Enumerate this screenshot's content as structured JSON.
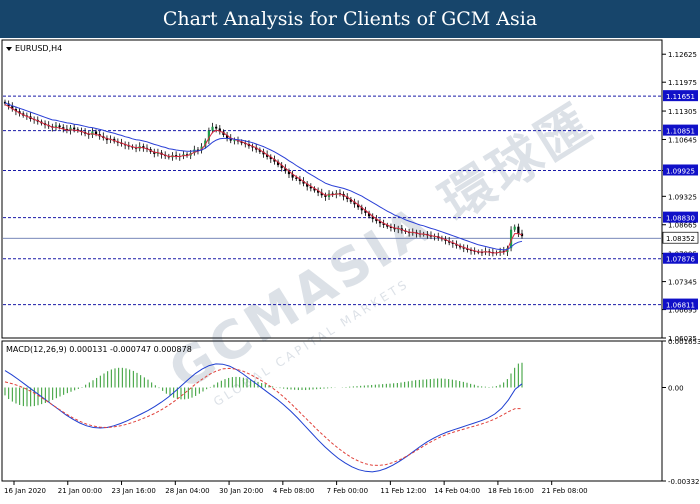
{
  "banner": {
    "title": "Chart Analysis for Clients of GCM Asia"
  },
  "watermark": {
    "text": "GCMASIA 環球匯",
    "subtext": "GLOBAL CAPITAL MARKETS"
  },
  "chart_data": [
    {
      "type": "line",
      "subtype": "candlestick",
      "symbol_label": "EURUSD,H4",
      "ylim": [
        1.06035,
        1.12955
      ],
      "y_ticks": [
        "1.12625",
        "1.11975",
        "1.11305",
        "1.10645",
        "1.09925",
        "1.09325",
        "1.08665",
        "1.07995",
        "1.07345",
        "1.06695",
        "1.06035"
      ],
      "price_now": 1.08352,
      "price_now_label": "1.08352",
      "levels": [
        {
          "value": 1.11651,
          "label": "1.11651"
        },
        {
          "value": 1.10851,
          "label": "1.10851"
        },
        {
          "value": 1.09925,
          "label": "1.09925"
        },
        {
          "value": 1.0883,
          "label": "1.08830"
        },
        {
          "value": 1.07876,
          "label": "1.07876"
        },
        {
          "value": 1.06811,
          "label": "1.06811"
        }
      ],
      "x_labels": [
        "16 Jan 2020",
        "21 Jan 00:00",
        "23 Jan 16:00",
        "28 Jan 04:00",
        "30 Jan 20:00",
        "4 Feb 08:00",
        "7 Feb 00:00",
        "11 Feb 12:00",
        "14 Feb 04:00",
        "18 Feb 16:00",
        "21 Feb 08:00"
      ],
      "closes": [
        1.1148,
        1.1142,
        1.1135,
        1.113,
        1.1125,
        1.112,
        1.1118,
        1.1112,
        1.111,
        1.1106,
        1.1102,
        1.1098,
        1.1095,
        1.1092,
        1.1097,
        1.1093,
        1.1089,
        1.1085,
        1.1092,
        1.1088,
        1.1085,
        1.1082,
        1.1078,
        1.1075,
        1.1083,
        1.1077,
        1.1072,
        1.1068,
        1.1063,
        1.1066,
        1.106,
        1.1057,
        1.1054,
        1.1051,
        1.1048,
        1.1046,
        1.1043,
        1.1049,
        1.1045,
        1.1042,
        1.1036,
        1.1031,
        1.1034,
        1.1029,
        1.1026,
        1.1023,
        1.1028,
        1.1024,
        1.1026,
        1.103,
        1.1027,
        1.1033,
        1.1041,
        1.1039,
        1.1048,
        1.1062,
        1.1085,
        1.1094,
        1.109,
        1.1083,
        1.1075,
        1.1068,
        1.1062,
        1.1063,
        1.106,
        1.1056,
        1.1054,
        1.1049,
        1.1046,
        1.1041,
        1.1036,
        1.103,
        1.1024,
        1.1019,
        1.1013,
        1.1005,
        1.0998,
        1.0991,
        1.0984,
        1.0976,
        1.0973,
        1.0968,
        1.0962,
        1.0955,
        1.0951,
        1.0946,
        1.0941,
        1.0935,
        1.0931,
        1.0939,
        1.0936,
        1.094,
        1.0938,
        1.0932,
        1.0926,
        1.092,
        1.0914,
        1.0907,
        1.09,
        1.0894,
        1.0886,
        1.088,
        1.0875,
        1.087,
        1.0866,
        1.0862,
        1.0859,
        1.0856,
        1.0858,
        1.0853,
        1.085,
        1.0847,
        1.0849,
        1.0846,
        1.0844,
        1.0845,
        1.0842,
        1.0839,
        1.084,
        1.0836,
        1.0833,
        1.0829,
        1.0825,
        1.0822,
        1.0818,
        1.0814,
        1.0811,
        1.0808,
        1.0806,
        1.0804,
        1.0803,
        1.0802,
        1.0805,
        1.0803,
        1.08,
        1.0802,
        1.0806,
        1.0803,
        1.0812,
        1.0855,
        1.0862,
        1.0846,
        1.084
      ],
      "series": [
        {
          "name": "",
          "color": "#d7263d",
          "values": [
            1.1146,
            1.1141,
            1.1136,
            1.1131,
            1.1126,
            1.1122,
            1.1118,
            1.1115,
            1.1111,
            1.1108,
            1.1104,
            1.11,
            1.1097,
            1.1093,
            1.1093,
            1.1091,
            1.1089,
            1.1086,
            1.1087,
            1.1086,
            1.1085,
            1.1083,
            1.108,
            1.1077,
            1.1078,
            1.1076,
            1.1074,
            1.107,
            1.1066,
            1.1065,
            1.1062,
            1.1059,
            1.1056,
            1.1053,
            1.105,
            1.1048,
            1.1045,
            1.1046,
            1.1045,
            1.1043,
            1.1039,
            1.1035,
            1.1034,
            1.1031,
            1.1028,
            1.1025,
            1.1026,
            1.1025,
            1.1025,
            1.1027,
            1.1027,
            1.103,
            1.1035,
            1.1037,
            1.1042,
            1.1052,
            1.1068,
            1.1081,
            1.1086,
            1.1084,
            1.108,
            1.1074,
            1.1068,
            1.1065,
            1.1062,
            1.1059,
            1.1056,
            1.1052,
            1.1049,
            1.1045,
            1.104,
            1.1035,
            1.1029,
            1.1024,
            1.1018,
            1.1012,
            1.1005,
            1.0998,
            1.0991,
            1.0984,
            1.0978,
            1.0973,
            1.0967,
            1.0961,
            1.0956,
            1.0951,
            1.0946,
            1.094,
            1.0935,
            1.0936,
            1.0936,
            1.0938,
            1.0938,
            1.0935,
            1.0931,
            1.0925,
            1.0919,
            1.0913,
            1.0906,
            1.09,
            1.0893,
            1.0886,
            1.088,
            1.0875,
            1.087,
            1.0866,
            1.0862,
            1.0859,
            1.0858,
            1.0855,
            1.0852,
            1.0849,
            1.0849,
            1.0847,
            1.0845,
            1.0845,
            1.0843,
            1.0841,
            1.084,
            1.0838,
            1.0835,
            1.0832,
            1.0828,
            1.0825,
            1.0821,
            1.0817,
            1.0814,
            1.0811,
            1.0808,
            1.0806,
            1.0804,
            1.0803,
            1.0804,
            1.0803,
            1.0801,
            1.0801,
            1.0803,
            1.0803,
            1.0808,
            1.083,
            1.0846,
            1.0846,
            1.0843
          ]
        },
        {
          "name": "",
          "color": "#2a3fd6",
          "values": [
            1.115,
            1.1146,
            1.1143,
            1.114,
            1.1137,
            1.1134,
            1.1131,
            1.1128,
            1.1125,
            1.1122,
            1.1119,
            1.1116,
            1.1113,
            1.111,
            1.1109,
            1.1107,
            1.1105,
            1.1103,
            1.1102,
            1.11,
            1.1099,
            1.1097,
            1.1095,
            1.1093,
            1.1092,
            1.109,
            1.1088,
            1.1086,
            1.1083,
            1.1081,
            1.1079,
            1.1076,
            1.1074,
            1.1071,
            1.1069,
            1.1066,
            1.1064,
            1.1063,
            1.1061,
            1.1059,
            1.1056,
            1.1053,
            1.1051,
            1.1048,
            1.1046,
            1.1043,
            1.1042,
            1.104,
            1.1039,
            1.1038,
            1.1037,
            1.1037,
            1.1038,
            1.1038,
            1.104,
            1.1044,
            1.1051,
            1.1058,
            1.1063,
            1.1066,
            1.1067,
            1.1067,
            1.1066,
            1.1065,
            1.1064,
            1.1063,
            1.1061,
            1.1059,
            1.1057,
            1.1054,
            1.1051,
            1.1048,
            1.1044,
            1.104,
            1.1036,
            1.1031,
            1.1026,
            1.1021,
            1.1015,
            1.101,
            1.1004,
            1.0999,
            1.0994,
            1.0988,
            1.0983,
            1.0978,
            1.0973,
            1.0968,
            1.0963,
            1.096,
            1.0957,
            1.0955,
            1.0953,
            1.0951,
            1.0948,
            1.0945,
            1.0941,
            1.0937,
            1.0933,
            1.0928,
            1.0923,
            1.0918,
            1.0913,
            1.0908,
            1.0903,
            1.0898,
            1.0894,
            1.0889,
            1.0886,
            1.0882,
            1.0878,
            1.0875,
            1.0872,
            1.0869,
            1.0866,
            1.0864,
            1.0861,
            1.0858,
            1.0856,
            1.0853,
            1.085,
            1.0847,
            1.0844,
            1.0841,
            1.0838,
            1.0835,
            1.0832,
            1.0829,
            1.0826,
            1.0823,
            1.082,
            1.0818,
            1.0816,
            1.0814,
            1.0812,
            1.081,
            1.0809,
            1.0808,
            1.0809,
            1.0815,
            1.0822,
            1.0826,
            1.0828
          ]
        }
      ]
    },
    {
      "type": "bar",
      "label": "MACD(12,26,9) 0.000131 -0.000747 0.000878",
      "ylim": [
        -0.003323,
        0.001653
      ],
      "y_ticks": [
        "0.001653",
        "0.00",
        "-0.003323"
      ],
      "histogram": [
        -0.00028,
        -0.00041,
        -0.0005,
        -0.00057,
        -0.00062,
        -0.00066,
        -0.00067,
        -0.00067,
        -0.00066,
        -0.00063,
        -0.00059,
        -0.00055,
        -0.0005,
        -0.00044,
        -0.00038,
        -0.00032,
        -0.00026,
        -0.0002,
        -0.00015,
        -0.0001,
        -5e-05,
        2e-05,
        0.0001,
        0.00018,
        0.00026,
        0.00034,
        0.00042,
        0.0005,
        0.00058,
        0.00064,
        0.00068,
        0.0007,
        0.0007,
        0.00068,
        0.00064,
        0.00059,
        0.00052,
        0.00044,
        0.00036,
        0.00028,
        0.00018,
        8e-05,
        -2e-05,
        -0.00012,
        -0.00022,
        -0.0003,
        -0.00036,
        -0.0004,
        -0.00042,
        -0.00042,
        -0.0004,
        -0.00036,
        -0.0003,
        -0.00022,
        -0.00014,
        -6e-05,
        2e-05,
        0.0001,
        0.00018,
        0.00024,
        0.0003,
        0.00034,
        0.00037,
        0.00038,
        0.00037,
        0.00035,
        0.00032,
        0.00028,
        0.00024,
        0.0002,
        0.00016,
        0.00012,
        8e-05,
        4e-05,
        1e-05,
        -2e-05,
        -4e-05,
        -6e-05,
        -7e-05,
        -8e-05,
        -9e-05,
        -9e-05,
        -9e-05,
        -8e-05,
        -7e-05,
        -6e-05,
        -5e-05,
        -4e-05,
        -3e-05,
        -2e-05,
        -1e-05,
        0.0,
        1e-05,
        2e-05,
        3e-05,
        4e-05,
        5e-05,
        6e-05,
        7e-05,
        8e-05,
        9e-05,
        0.0001,
        0.00011,
        0.00012,
        0.00013,
        0.00014,
        0.00015,
        0.00016,
        0.00018,
        0.0002,
        0.00022,
        0.00024,
        0.00026,
        0.00027,
        0.00028,
        0.00029,
        0.0003,
        0.00031,
        0.00032,
        0.00032,
        0.00031,
        0.0003,
        0.00028,
        0.00026,
        0.00023,
        0.0002,
        0.00017,
        0.00013,
        0.0001,
        6e-05,
        4e-05,
        3e-05,
        2e-05,
        3e-05,
        5e-05,
        0.0001,
        0.00018,
        0.0003,
        0.0005,
        0.0007,
        0.00085,
        0.00088
      ],
      "series": [
        {
          "name": "",
          "color": "#1e3fd1",
          "values": [
            0.0006,
            0.00045,
            0.00028,
            0.0001,
            -8e-05,
            -0.00026,
            -0.00044,
            -0.00062,
            -0.0008,
            -0.00098,
            -0.00113,
            -0.00126,
            -0.00136,
            -0.00142,
            -0.00144,
            -0.00142,
            -0.00136,
            -0.00128,
            -0.00118,
            -0.00106,
            -0.00094,
            -0.00082,
            -0.00068,
            -0.00052,
            -0.00034,
            -0.00014,
            8e-05,
            0.0003,
            0.0005,
            0.00066,
            0.00078,
            0.00084,
            0.00083,
            0.00076,
            0.00064,
            0.00048,
            0.0003,
            0.00012,
            -6e-05,
            -0.00024,
            -0.00042,
            -0.00062,
            -0.00084,
            -0.00108,
            -0.00134,
            -0.0016,
            -0.00186,
            -0.0021,
            -0.00232,
            -0.00252,
            -0.00268,
            -0.00282,
            -0.00292,
            -0.00298,
            -0.003,
            -0.00296,
            -0.00288,
            -0.00276,
            -0.00262,
            -0.00246,
            -0.00228,
            -0.0021,
            -0.00194,
            -0.0018,
            -0.00168,
            -0.00158,
            -0.0015,
            -0.00142,
            -0.00134,
            -0.00126,
            -0.00118,
            -0.00108,
            -0.00094,
            -0.00074,
            -0.00044,
            -6e-05,
            0.00013
          ]
        },
        {
          "name": "",
          "color": "#e0403a",
          "values": [
            0.0002,
            0.00014,
            6e-05,
            -4e-05,
            -0.00016,
            -0.0003,
            -0.00046,
            -0.00062,
            -0.00078,
            -0.00094,
            -0.00108,
            -0.0012,
            -0.0013,
            -0.00137,
            -0.00141,
            -0.00142,
            -0.0014,
            -0.00136,
            -0.0013,
            -0.00122,
            -0.00113,
            -0.00103,
            -0.00092,
            -0.00079,
            -0.00064,
            -0.00047,
            -0.00028,
            -8e-05,
            0.00012,
            0.0003,
            0.00046,
            0.00058,
            0.00066,
            0.00068,
            0.00065,
            0.00058,
            0.00047,
            0.00034,
            0.0002,
            4e-05,
            -0.00014,
            -0.00034,
            -0.00056,
            -0.0008,
            -0.00104,
            -0.00128,
            -0.00152,
            -0.00174,
            -0.00196,
            -0.00216,
            -0.00234,
            -0.0025,
            -0.00262,
            -0.00271,
            -0.00276,
            -0.00277,
            -0.00274,
            -0.00267,
            -0.00257,
            -0.00245,
            -0.00231,
            -0.00216,
            -0.00201,
            -0.00188,
            -0.00176,
            -0.00166,
            -0.00158,
            -0.00151,
            -0.00144,
            -0.00137,
            -0.0013,
            -0.00122,
            -0.00112,
            -0.001,
            -0.00086,
            -0.00075,
            -0.00075
          ]
        }
      ]
    }
  ]
}
